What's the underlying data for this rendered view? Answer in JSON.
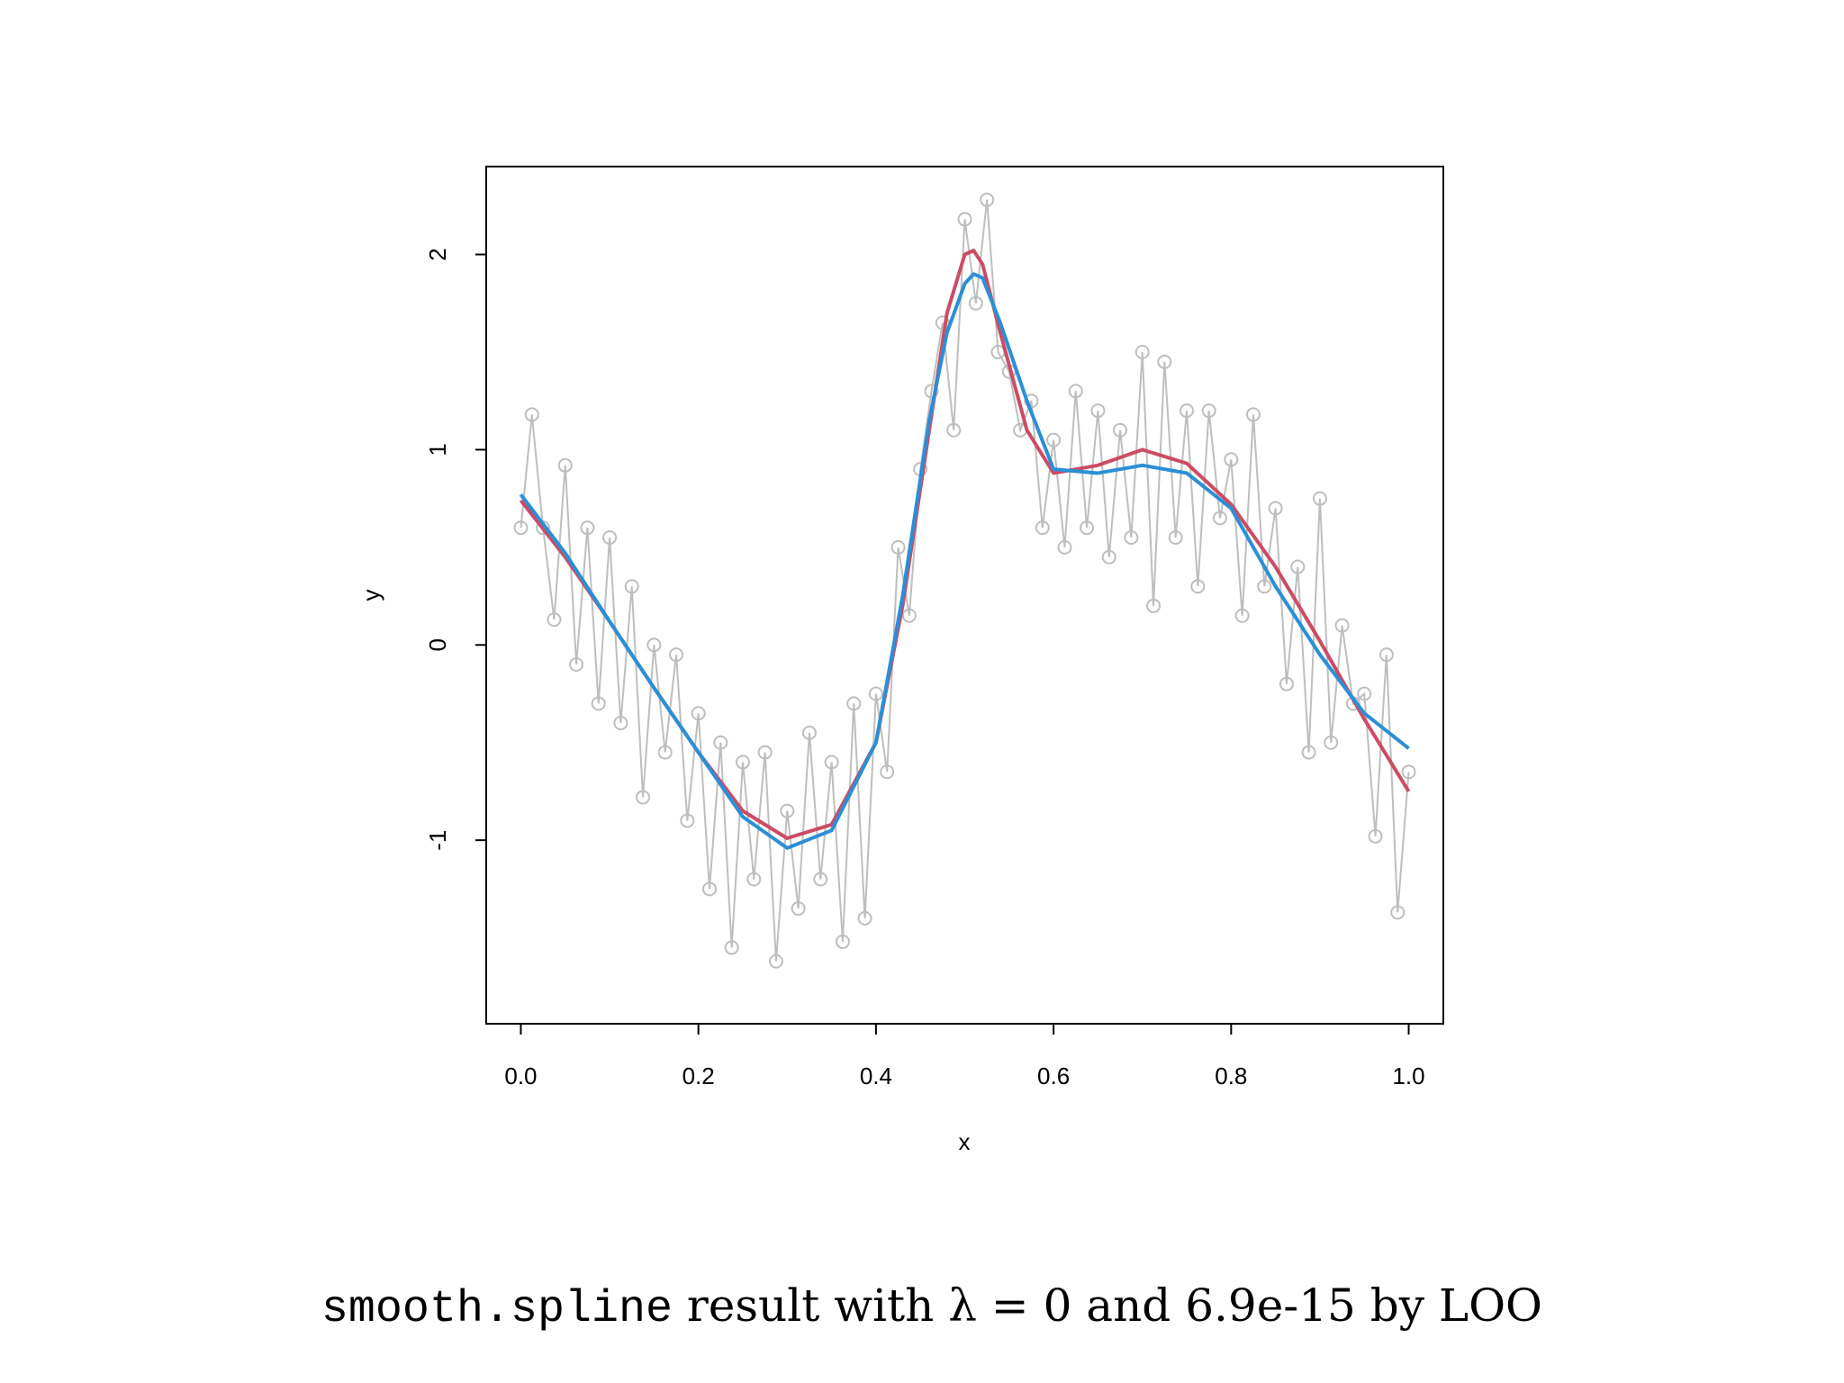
{
  "chart_data": {
    "type": "scatter-line",
    "title_code": "smooth.spline",
    "title": "result with λ = 0 and 6.9e-15 by LOO",
    "xlabel": "x",
    "ylabel": "y",
    "xlim": [
      -0.039,
      1.039
    ],
    "ylim": [
      -1.94,
      2.45
    ],
    "xticks": [
      {
        "value": 0,
        "label": "0.0"
      },
      0.2,
      0.4,
      0.6,
      0.8,
      {
        "value": 1,
        "label": "1.0"
      }
    ],
    "yticks": [
      -1,
      0,
      1,
      2
    ],
    "series": [
      {
        "kind": "points",
        "color": "#bebebe",
        "x": [
          0,
          0.0125,
          0.025,
          0.0375,
          0.05,
          0.0625,
          0.075,
          0.0875,
          0.1,
          0.1125,
          0.125,
          0.1375,
          0.15,
          0.1625,
          0.175,
          0.1875,
          0.2,
          0.2125,
          0.225,
          0.2375,
          0.25,
          0.2625,
          0.275,
          0.2875,
          0.3,
          0.3125,
          0.325,
          0.3375,
          0.35,
          0.3625,
          0.375,
          0.3875,
          0.4,
          0.4125,
          0.425,
          0.4375,
          0.45,
          0.4625,
          0.475,
          0.4875,
          0.5,
          0.5125,
          0.525,
          0.5375,
          0.55,
          0.5625,
          0.575,
          0.5875,
          0.6,
          0.6125,
          0.625,
          0.6375,
          0.65,
          0.6625,
          0.675,
          0.6875,
          0.7,
          0.7125,
          0.725,
          0.7375,
          0.75,
          0.7625,
          0.775,
          0.7875,
          0.8,
          0.8125,
          0.825,
          0.8375,
          0.85,
          0.8625,
          0.875,
          0.8875,
          0.9,
          0.9125,
          0.925,
          0.9375,
          0.95,
          0.9625,
          0.975,
          0.9875,
          1.0
        ],
        "values": [
          0.6,
          1.18,
          0.6,
          0.13,
          0.92,
          -0.1,
          0.6,
          -0.3,
          0.55,
          -0.4,
          0.3,
          -0.78,
          0.0,
          -0.55,
          -0.05,
          -0.9,
          -0.35,
          -1.25,
          -0.5,
          -1.55,
          -0.6,
          -1.2,
          -0.55,
          -1.62,
          -0.85,
          -1.35,
          -0.45,
          -1.2,
          -0.6,
          -1.52,
          -0.3,
          -1.4,
          -0.25,
          -0.65,
          0.5,
          0.15,
          0.9,
          1.3,
          1.65,
          1.1,
          2.18,
          1.75,
          2.28,
          1.5,
          1.4,
          1.1,
          1.25,
          0.6,
          1.05,
          0.5,
          1.3,
          0.6,
          1.2,
          0.45,
          1.1,
          0.55,
          1.5,
          0.2,
          1.45,
          0.55,
          1.2,
          0.3,
          1.2,
          0.65,
          0.95,
          0.15,
          1.18,
          0.3,
          0.7,
          -0.2,
          0.4,
          -0.55,
          0.75,
          -0.5,
          0.1,
          -0.3,
          -0.25,
          -0.98,
          -0.05,
          -1.37,
          -0.65
        ]
      },
      {
        "kind": "line",
        "color": "#cc4c64",
        "x": [
          0,
          0.05,
          0.1,
          0.15,
          0.2,
          0.25,
          0.3,
          0.35,
          0.4,
          0.43,
          0.46,
          0.48,
          0.5,
          0.51,
          0.52,
          0.54,
          0.57,
          0.6,
          0.65,
          0.7,
          0.75,
          0.8,
          0.85,
          0.9,
          0.95,
          1.0
        ],
        "values": [
          0.74,
          0.45,
          0.12,
          -0.22,
          -0.55,
          -0.85,
          -0.99,
          -0.92,
          -0.5,
          0.2,
          1.1,
          1.7,
          2.0,
          2.02,
          1.95,
          1.6,
          1.1,
          0.88,
          0.92,
          1.0,
          0.93,
          0.72,
          0.4,
          0.02,
          -0.38,
          -0.75
        ]
      },
      {
        "kind": "line",
        "color": "#2b8fd6",
        "x": [
          0,
          0.05,
          0.1,
          0.15,
          0.2,
          0.25,
          0.3,
          0.35,
          0.4,
          0.43,
          0.46,
          0.48,
          0.5,
          0.51,
          0.52,
          0.54,
          0.57,
          0.6,
          0.65,
          0.7,
          0.75,
          0.8,
          0.85,
          0.9,
          0.95,
          1.0
        ],
        "values": [
          0.77,
          0.47,
          0.12,
          -0.22,
          -0.55,
          -0.88,
          -1.04,
          -0.95,
          -0.5,
          0.25,
          1.15,
          1.6,
          1.85,
          1.9,
          1.88,
          1.65,
          1.25,
          0.9,
          0.88,
          0.92,
          0.88,
          0.7,
          0.3,
          -0.05,
          -0.35,
          -0.53
        ]
      }
    ]
  }
}
